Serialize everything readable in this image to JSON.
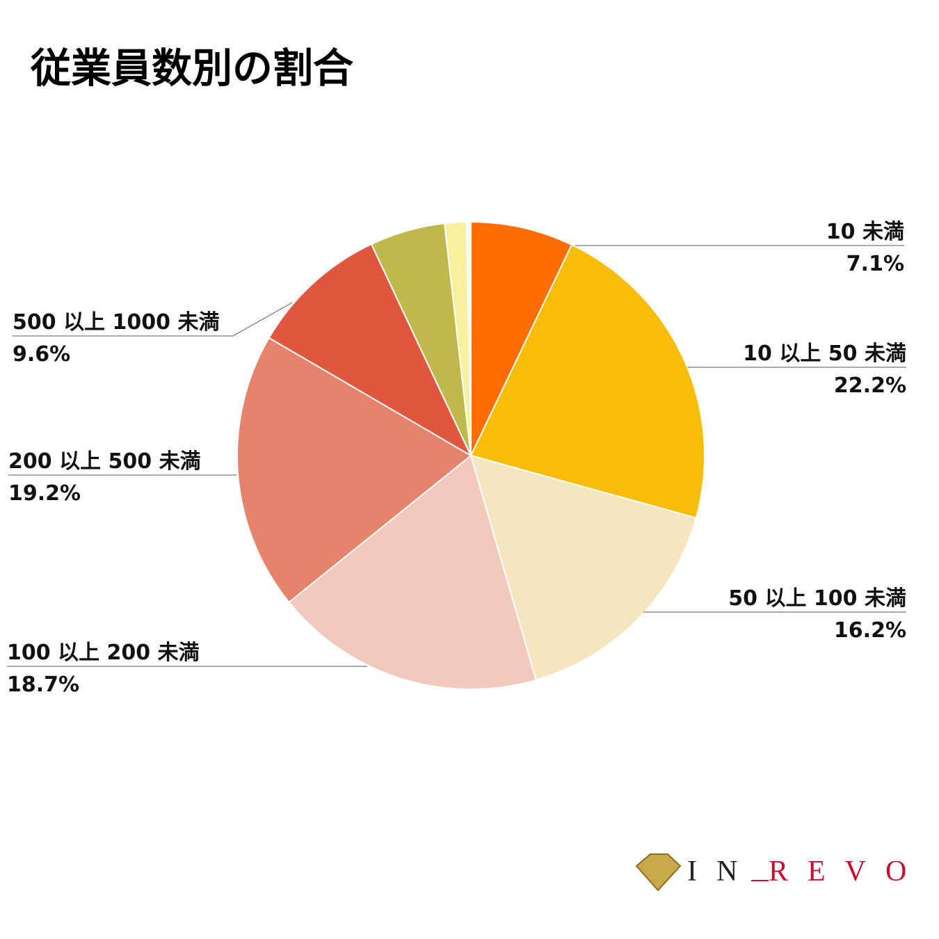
{
  "chart_data": {
    "type": "pie",
    "title": "従業員数別の割合",
    "categories": [
      "10 未満",
      "10 以上 50 未満",
      "50 以上 100 未満",
      "100 以上 200 未満",
      "200 以上 500 未満",
      "500 以上 1000 未満",
      null,
      null,
      null
    ],
    "values": [
      7.1,
      22.2,
      16.2,
      18.7,
      19.2,
      9.6,
      5.2,
      1.5,
      0.3
    ],
    "value_labels": [
      "7.1%",
      "22.2%",
      "16.2%",
      "18.7%",
      "19.2%",
      "9.6%",
      null,
      null,
      null
    ],
    "colors": [
      "#ff6d00",
      "#f8bd09",
      "#f5e6bf",
      "#f3c9bd",
      "#e5836c",
      "#df573c",
      "#bfb94c",
      "#f7f19e",
      "#ffffff"
    ]
  },
  "logo": {
    "prefix": "IN",
    "suffix": "REVO"
  }
}
